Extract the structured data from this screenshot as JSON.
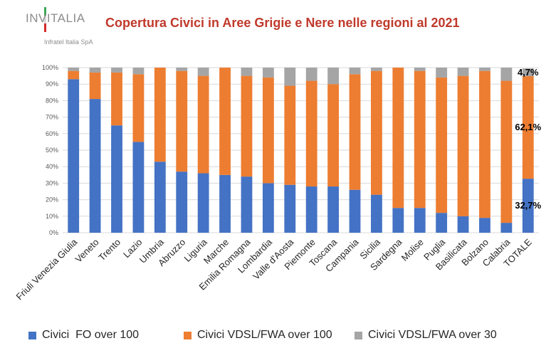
{
  "header": {
    "logo_name": "INVITALIA",
    "logo_subtitle": "Infratel Italia SpA"
  },
  "colors": {
    "logo_green": "#3aa757",
    "logo_white": "#d9d9d9",
    "logo_red": "#d62b2b",
    "title": "#c0392b",
    "fo": "#4472c4",
    "vdsl100": "#ed7d31",
    "vdsl30": "#a5a5a5",
    "grid": "#d9d9d9",
    "axis_text": "#595959"
  },
  "chart_data": {
    "type": "bar",
    "stacked": true,
    "title": "Copertura Civici in Aree Grigie e Nere nelle regioni al 2021",
    "xlabel": "",
    "ylabel": "",
    "ylim": [
      0,
      100
    ],
    "y_ticks": [
      "0%",
      "10%",
      "20%",
      "30%",
      "40%",
      "50%",
      "60%",
      "70%",
      "80%",
      "90%",
      "100%"
    ],
    "grid": true,
    "legend_position": "bottom",
    "categories": [
      "Friuli Venezia Giulia",
      "Veneto",
      "Trento",
      "Lazio",
      "Umbria",
      "Abruzzo",
      "Liguria",
      "Marche",
      "Emilia Romagna",
      "Lombardia",
      "Valle d'Aosta",
      "Piemonte",
      "Toscana",
      "Campania",
      "Sicilia",
      "Sardegna",
      "Molise",
      "Puglia",
      "Basilicata",
      "Bolzano",
      "Calabria",
      "TOTALE"
    ],
    "series": [
      {
        "name": "Civici  FO over 100",
        "color": "#4472c4",
        "values": [
          93,
          81,
          65,
          55,
          43,
          37,
          36,
          35,
          34,
          30,
          29,
          28,
          28,
          26,
          23,
          15,
          15,
          12,
          10,
          9,
          6,
          32.7
        ]
      },
      {
        "name": "Civici VDSL/FWA over 100",
        "color": "#ed7d31",
        "values": [
          5,
          16,
          32,
          41,
          57,
          61,
          59,
          65,
          61,
          64,
          60,
          64,
          62,
          70,
          75,
          85,
          83,
          82,
          85,
          89,
          86,
          62.1
        ]
      },
      {
        "name": "Civici VDSL/FWA over 30",
        "color": "#a5a5a5",
        "values": [
          2,
          3,
          3,
          4,
          0,
          2,
          5,
          0,
          5,
          6,
          11,
          8,
          10,
          4,
          2,
          0,
          2,
          6,
          5,
          2,
          8,
          4.7
        ]
      }
    ],
    "annotations": [
      {
        "category": "TOTALE",
        "series": 2,
        "text": "4,7%"
      },
      {
        "category": "TOTALE",
        "series": 1,
        "text": "62,1%"
      },
      {
        "category": "TOTALE",
        "series": 0,
        "text": "32,7%"
      }
    ]
  }
}
